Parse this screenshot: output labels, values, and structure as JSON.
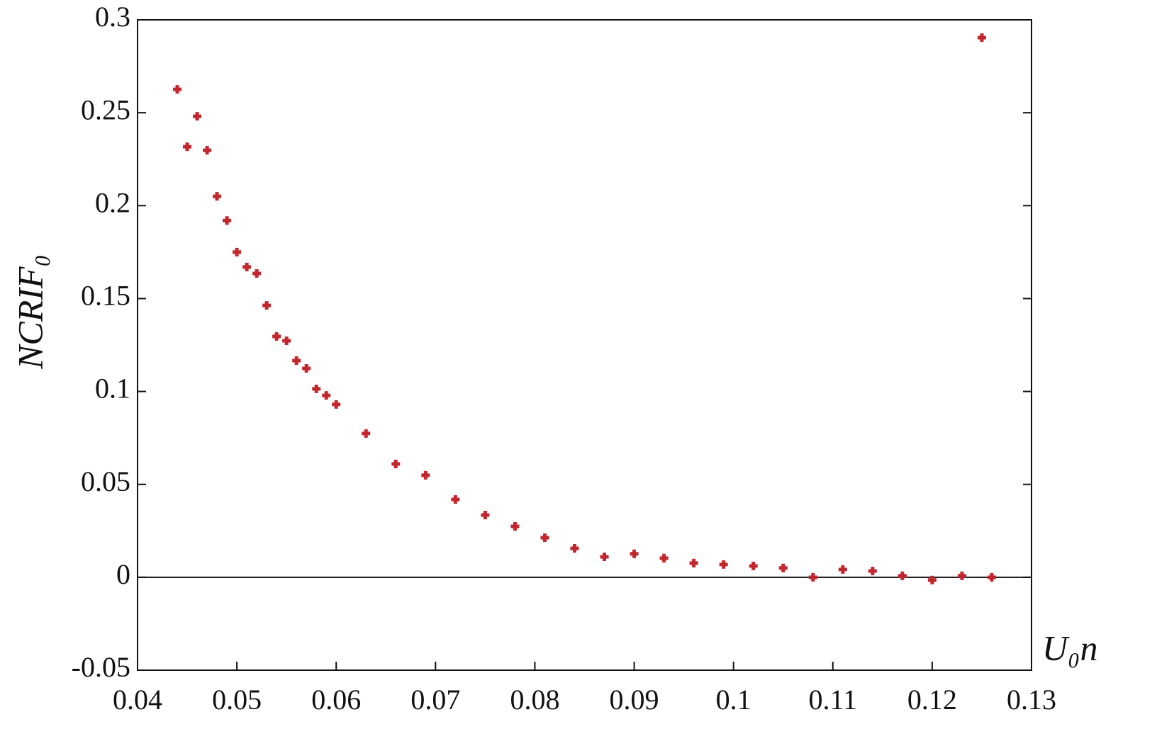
{
  "chart_data": {
    "type": "scatter",
    "x_label": "U₀n",
    "y_label": "NCRIF₀",
    "x": [
      0.044,
      0.045,
      0.046,
      0.047,
      0.048,
      0.049,
      0.05,
      0.051,
      0.052,
      0.053,
      0.054,
      0.055,
      0.056,
      0.057,
      0.058,
      0.059,
      0.06,
      0.063,
      0.066,
      0.069,
      0.072,
      0.075,
      0.078,
      0.081,
      0.084,
      0.087,
      0.09,
      0.093,
      0.096,
      0.099,
      0.102,
      0.105,
      0.108,
      0.111,
      0.114,
      0.117,
      0.12,
      0.123,
      0.125,
      0.126
    ],
    "values": [
      0.2626,
      0.2317,
      0.2481,
      0.2298,
      0.205,
      0.192,
      0.175,
      0.167,
      0.1635,
      0.1463,
      0.1296,
      0.1273,
      0.1166,
      0.1124,
      0.1014,
      0.0979,
      0.093,
      0.0774,
      0.061,
      0.0549,
      0.0419,
      0.0335,
      0.0274,
      0.0213,
      0.0156,
      0.011,
      0.0126,
      0.0103,
      0.0076,
      0.0069,
      0.0061,
      0.005,
      0,
      0.0042,
      0.0034,
      0.0008,
      -0.0015,
      0.0008,
      0.2904,
      0
    ],
    "color": "#c1272d",
    "xlim": [
      0.04,
      0.13
    ],
    "xticks": [
      0.04,
      0.05,
      0.06,
      0.07,
      0.08,
      0.09,
      0.1,
      0.11,
      0.12,
      0.13
    ],
    "ylim": [
      -0.05,
      0.3
    ],
    "yticks": [
      -0.05,
      0,
      0.05,
      0.1,
      0.15,
      0.2,
      0.25,
      0.3
    ],
    "zero_line": true
  }
}
